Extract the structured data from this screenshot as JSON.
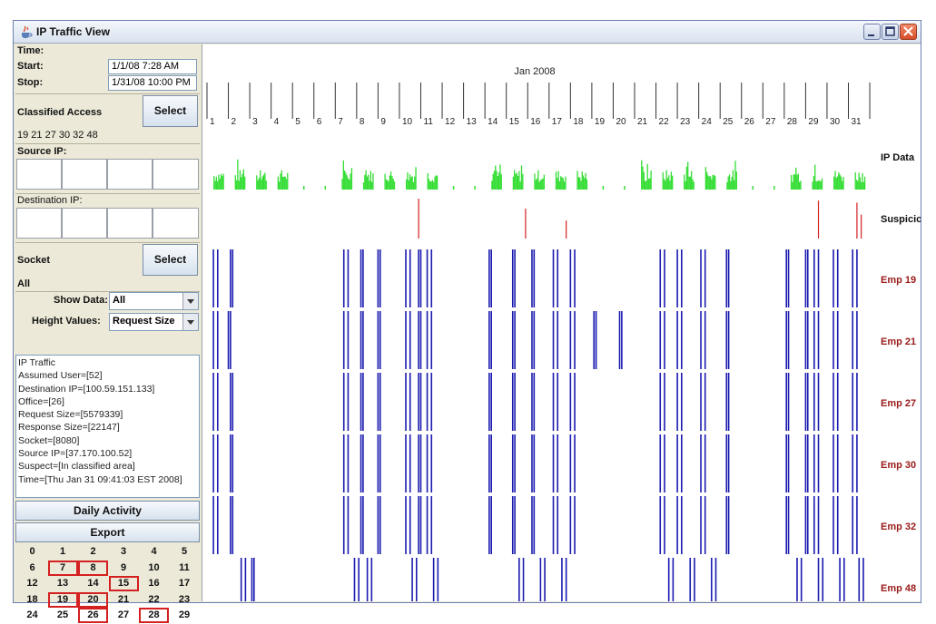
{
  "window": {
    "title": "IP Traffic View"
  },
  "time": {
    "label": "Time:",
    "start_label": "Start:",
    "start_value": "1/1/08 7:28 AM",
    "stop_label": "Stop:",
    "stop_value": "1/31/08 10:00 PM"
  },
  "classified": {
    "label": "Classified Access",
    "select_label": "Select",
    "selected": "19 21 27 30 32 48"
  },
  "source_ip": {
    "label": "Source IP:"
  },
  "dest_ip": {
    "label": "Destination IP:"
  },
  "socket": {
    "label": "Socket",
    "select_label": "Select",
    "value": "All"
  },
  "show_data": {
    "label": "Show Data:",
    "value": "All"
  },
  "height_values": {
    "label": "Height Values:",
    "value": "Request Size"
  },
  "info_lines": [
    "IP Traffic",
    "Assumed User=[52]",
    "Destination IP=[100.59.151.133]",
    "Office=[26]",
    "Request Size=[5579339]",
    "Response Size=[22147]",
    "Socket=[8080]",
    "Source IP=[37.170.100.52]",
    "Suspect=[In classified area]",
    "Time=[Thu Jan 31 09:41:03 EST 2008]"
  ],
  "buttons": {
    "daily_activity": "Daily Activity",
    "export": "Export"
  },
  "day_grid": {
    "rows": [
      [
        "0",
        "1",
        "2",
        "3",
        "4",
        "5"
      ],
      [
        "6",
        "7",
        "8",
        "9",
        "10",
        "11"
      ],
      [
        "12",
        "13",
        "14",
        "15",
        "16",
        "17"
      ],
      [
        "18",
        "19",
        "20",
        "21",
        "22",
        "23"
      ],
      [
        "24",
        "25",
        "26",
        "27",
        "28",
        "29"
      ]
    ],
    "selected": [
      "7",
      "8",
      "15",
      "19",
      "20",
      "26",
      "28"
    ]
  },
  "timeline": {
    "month_label": "Jan 2008",
    "days": [
      "1",
      "2",
      "3",
      "4",
      "5",
      "6",
      "7",
      "8",
      "9",
      "10",
      "11",
      "12",
      "13",
      "14",
      "15",
      "16",
      "17",
      "18",
      "19",
      "20",
      "21",
      "22",
      "23",
      "24",
      "25",
      "26",
      "27",
      "28",
      "29",
      "30",
      "31"
    ],
    "rows": [
      {
        "label": "IP Data",
        "color": "#111111"
      },
      {
        "label": "Suspicious",
        "color": "#111111"
      },
      {
        "label": "Emp 19",
        "color": "#9a1a1a"
      },
      {
        "label": "Emp 21",
        "color": "#9a1a1a"
      },
      {
        "label": "Emp 27",
        "color": "#9a1a1a"
      },
      {
        "label": "Emp 30",
        "color": "#9a1a1a"
      },
      {
        "label": "Emp 32",
        "color": "#9a1a1a"
      },
      {
        "label": "Emp 48",
        "color": "#9a1a1a"
      }
    ],
    "colors": {
      "ip_data": "#33dd33",
      "suspicious": "#d42020",
      "employee": "#1a1ab0"
    },
    "suspicious_events": [
      10.9,
      15.9,
      17.8,
      29.6,
      31.4,
      31.6
    ],
    "suspicious_levels": [
      1.0,
      0.75,
      0.45,
      0.95,
      0.9,
      0.6
    ],
    "employee_activity": {
      "Emp 19": [
        [
          1.3,
          1.5
        ],
        [
          2.1,
          2.2
        ],
        [
          7.4,
          7.6
        ],
        [
          8.2,
          8.3
        ],
        [
          9.0,
          9.1
        ],
        [
          10.3,
          10.5
        ],
        [
          10.9,
          11.0
        ],
        [
          11.3,
          11.5
        ],
        [
          14.2,
          14.3
        ],
        [
          15.3,
          15.4
        ],
        [
          16.2,
          16.3
        ],
        [
          17.2,
          17.4
        ],
        [
          18.0,
          18.2
        ],
        [
          22.2,
          22.4
        ],
        [
          23.0,
          23.2
        ],
        [
          24.1,
          24.3
        ],
        [
          25.3,
          25.4
        ],
        [
          28.1,
          28.2
        ],
        [
          29.0,
          29.1
        ],
        [
          29.4,
          29.6
        ],
        [
          30.3,
          30.5
        ],
        [
          31.2,
          31.4
        ]
      ],
      "Emp 21": [
        [
          1.3,
          1.5
        ],
        [
          2.0,
          2.1
        ],
        [
          7.4,
          7.6
        ],
        [
          8.2,
          8.3
        ],
        [
          9.0,
          9.1
        ],
        [
          10.3,
          10.5
        ],
        [
          10.9,
          11.0
        ],
        [
          11.3,
          11.5
        ],
        [
          14.2,
          14.3
        ],
        [
          15.3,
          15.4
        ],
        [
          16.2,
          16.3
        ],
        [
          17.2,
          17.4
        ],
        [
          18.0,
          18.2
        ],
        [
          19.1,
          19.2
        ],
        [
          20.3,
          20.4
        ],
        [
          22.2,
          22.4
        ],
        [
          23.0,
          23.2
        ],
        [
          24.1,
          24.3
        ],
        [
          25.3,
          25.4
        ],
        [
          28.1,
          28.2
        ],
        [
          29.0,
          29.1
        ],
        [
          29.4,
          29.6
        ],
        [
          30.3,
          30.5
        ],
        [
          31.2,
          31.4
        ]
      ],
      "Emp 27": [
        [
          1.3,
          1.5
        ],
        [
          2.1,
          2.2
        ],
        [
          7.4,
          7.6
        ],
        [
          8.2,
          8.3
        ],
        [
          9.0,
          9.1
        ],
        [
          10.3,
          10.5
        ],
        [
          10.9,
          11.0
        ],
        [
          11.3,
          11.5
        ],
        [
          14.2,
          14.3
        ],
        [
          15.3,
          15.4
        ],
        [
          16.2,
          16.3
        ],
        [
          17.2,
          17.4
        ],
        [
          18.0,
          18.2
        ],
        [
          22.2,
          22.4
        ],
        [
          23.0,
          23.2
        ],
        [
          24.1,
          24.3
        ],
        [
          25.3,
          25.4
        ],
        [
          28.1,
          28.2
        ],
        [
          29.0,
          29.1
        ],
        [
          29.4,
          29.6
        ],
        [
          30.3,
          30.5
        ],
        [
          31.2,
          31.4
        ]
      ],
      "Emp 30": [
        [
          1.3,
          1.5
        ],
        [
          2.1,
          2.2
        ],
        [
          7.4,
          7.6
        ],
        [
          8.2,
          8.3
        ],
        [
          9.0,
          9.1
        ],
        [
          10.3,
          10.5
        ],
        [
          10.9,
          11.0
        ],
        [
          11.3,
          11.5
        ],
        [
          14.2,
          14.3
        ],
        [
          15.3,
          15.4
        ],
        [
          16.2,
          16.3
        ],
        [
          17.2,
          17.4
        ],
        [
          18.0,
          18.2
        ],
        [
          22.2,
          22.4
        ],
        [
          23.0,
          23.2
        ],
        [
          24.1,
          24.3
        ],
        [
          25.3,
          25.4
        ],
        [
          28.1,
          28.2
        ],
        [
          29.0,
          29.1
        ],
        [
          29.4,
          29.6
        ],
        [
          30.3,
          30.5
        ],
        [
          31.2,
          31.4
        ]
      ],
      "Emp 32": [
        [
          1.3,
          1.5
        ],
        [
          2.1,
          2.2
        ],
        [
          7.4,
          7.6
        ],
        [
          8.2,
          8.3
        ],
        [
          9.0,
          9.1
        ],
        [
          10.3,
          10.5
        ],
        [
          10.9,
          11.0
        ],
        [
          11.3,
          11.5
        ],
        [
          14.2,
          14.3
        ],
        [
          15.3,
          15.4
        ],
        [
          16.2,
          16.3
        ],
        [
          17.2,
          17.4
        ],
        [
          18.0,
          18.2
        ],
        [
          22.2,
          22.4
        ],
        [
          23.0,
          23.2
        ],
        [
          24.1,
          24.3
        ],
        [
          25.3,
          25.4
        ],
        [
          28.1,
          28.2
        ],
        [
          29.0,
          29.1
        ],
        [
          29.4,
          29.6
        ],
        [
          30.3,
          30.5
        ],
        [
          31.2,
          31.4
        ]
      ],
      "Emp 48": [
        [
          2.6,
          2.8
        ],
        [
          3.1,
          3.2
        ],
        [
          7.9,
          8.1
        ],
        [
          8.5,
          8.7
        ],
        [
          10.6,
          10.8
        ],
        [
          11.6,
          11.8
        ],
        [
          15.6,
          15.8
        ],
        [
          16.6,
          16.8
        ],
        [
          17.6,
          17.8
        ],
        [
          22.6,
          22.8
        ],
        [
          23.6,
          23.8
        ],
        [
          24.6,
          24.8
        ],
        [
          28.6,
          28.8
        ],
        [
          29.6,
          29.8
        ],
        [
          30.6,
          30.8
        ],
        [
          31.5,
          31.7
        ]
      ]
    }
  }
}
